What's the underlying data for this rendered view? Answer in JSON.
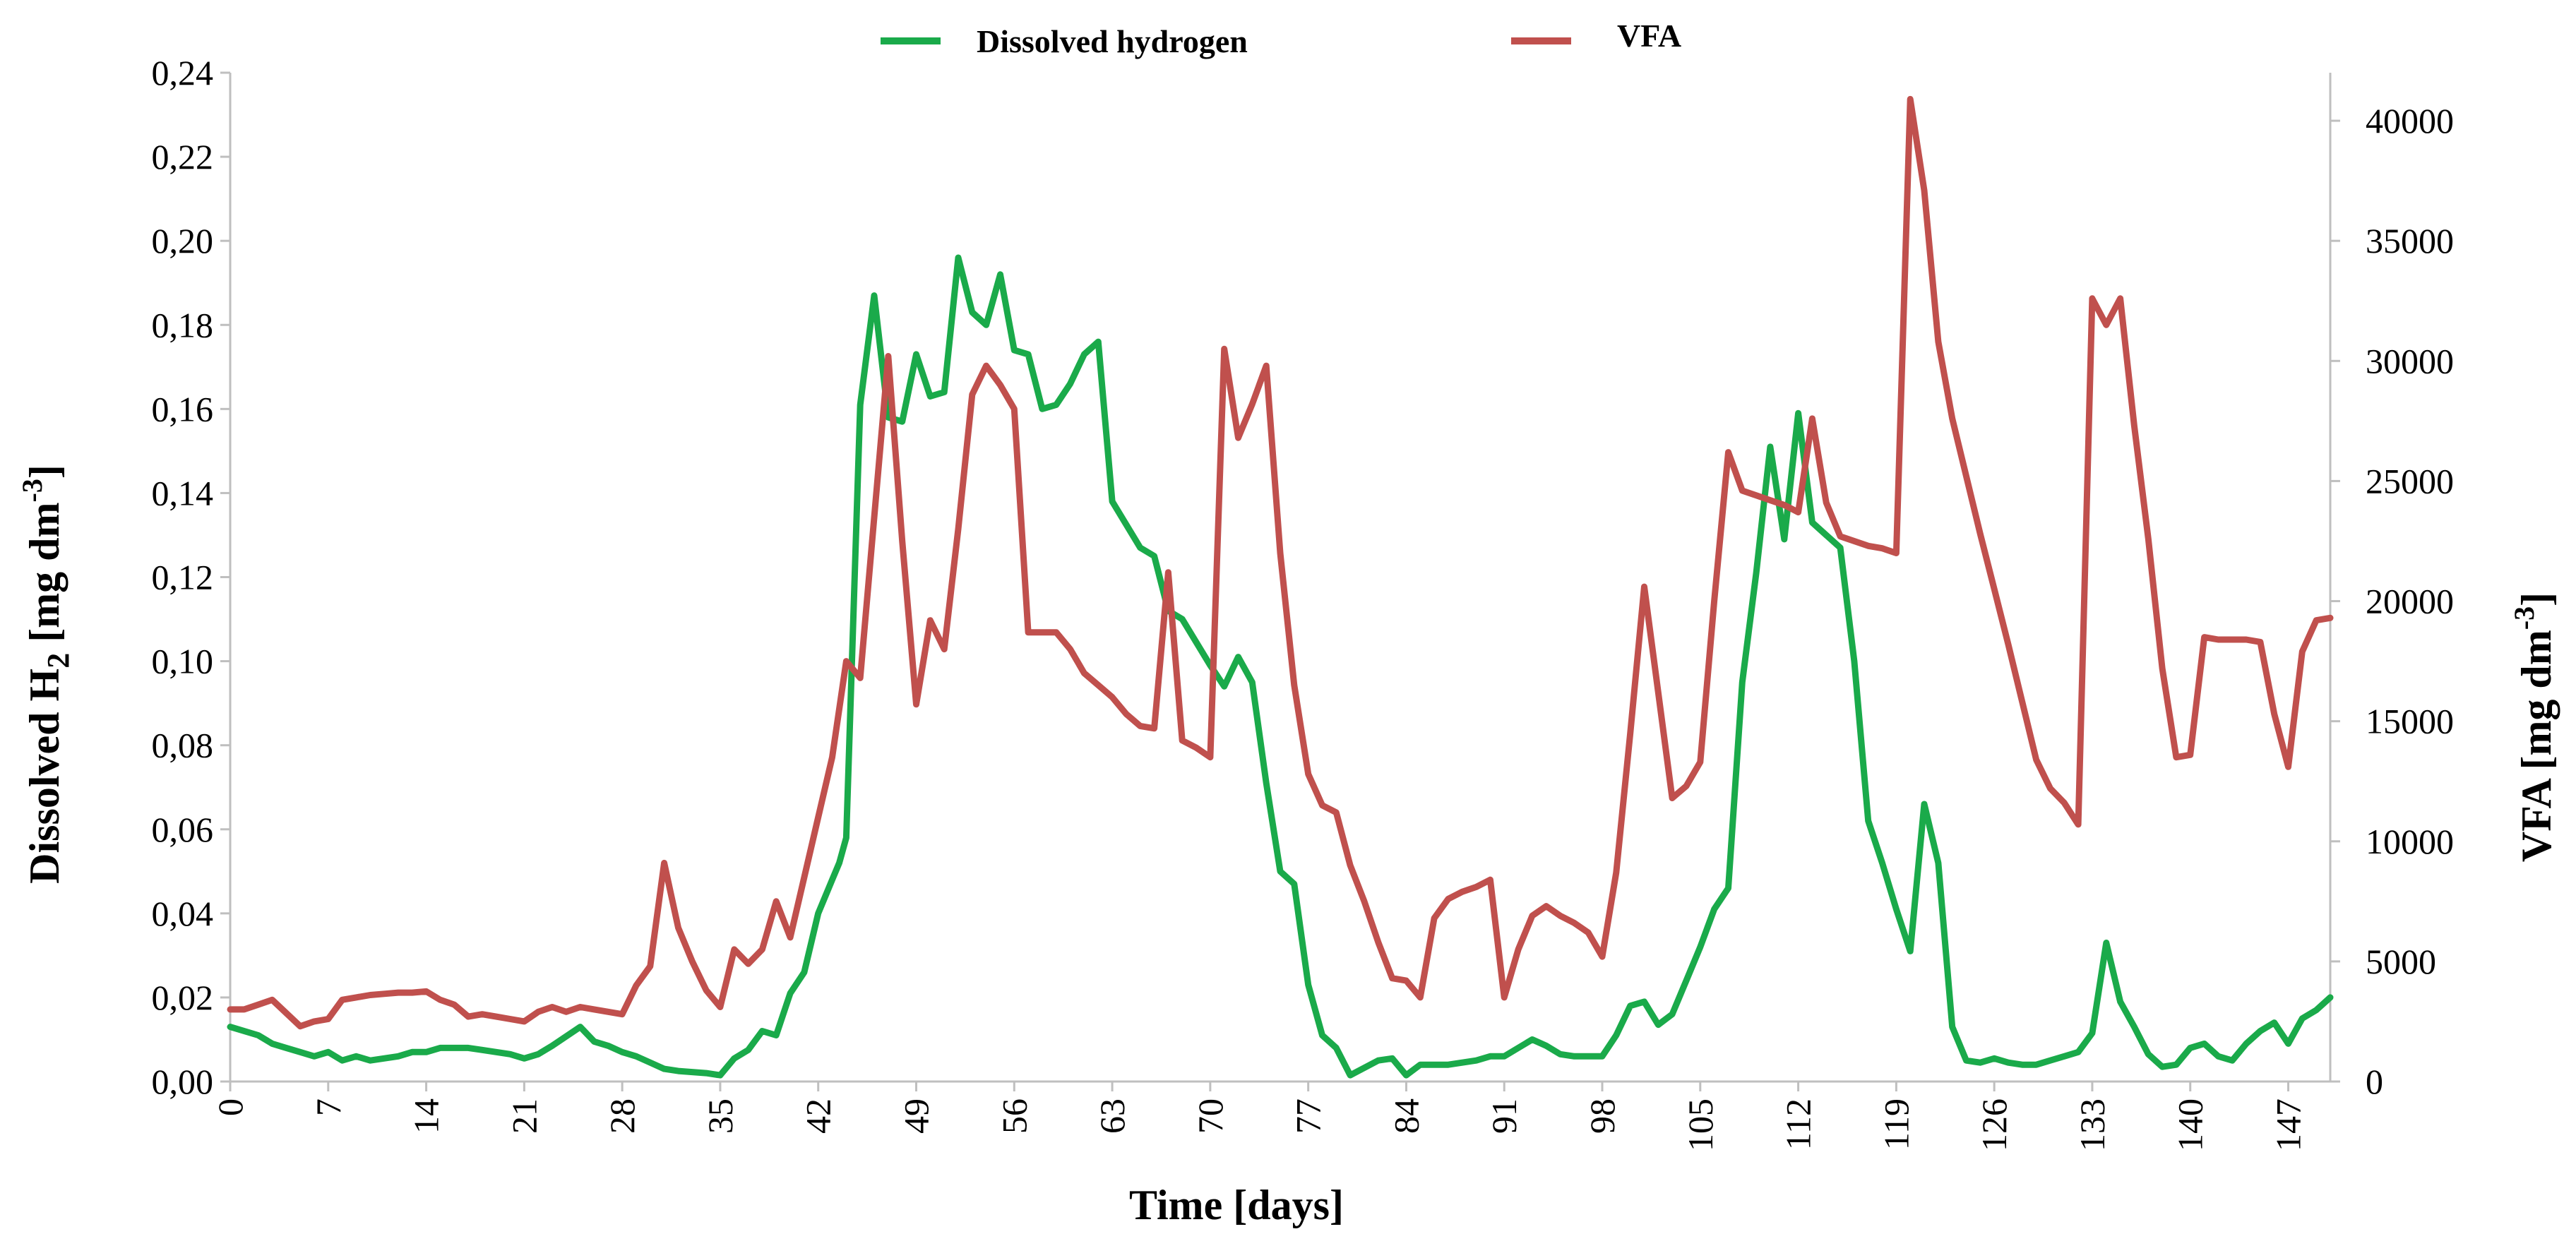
{
  "chart_data": {
    "type": "line",
    "xlabel": "Time [days]",
    "ylabel_left": "Dissolved H",
    "ylabel_left_sub": "2",
    "ylabel_left_unit": " [mg dm",
    "ylabel_left_sup": "-3",
    "ylabel_left_close": "]",
    "ylabel_right": "VFA [mg dm",
    "ylabel_right_sup": "-3",
    "ylabel_right_close": "]",
    "xlim": [
      0,
      150
    ],
    "ylim_left": [
      0,
      0.24
    ],
    "ylim_right": [
      0,
      42000
    ],
    "x_ticks": [
      0,
      7,
      14,
      21,
      28,
      35,
      42,
      49,
      56,
      63,
      70,
      77,
      84,
      91,
      98,
      105,
      112,
      119,
      126,
      133,
      140,
      147
    ],
    "y_left_ticks": [
      "0,00",
      "0,02",
      "0,04",
      "0,06",
      "0,08",
      "0,10",
      "0,12",
      "0,14",
      "0,16",
      "0,18",
      "0,20",
      "0,22",
      "0,24"
    ],
    "y_left_tick_values": [
      0,
      0.02,
      0.04,
      0.06,
      0.08,
      0.1,
      0.12,
      0.14,
      0.16,
      0.18,
      0.2,
      0.22,
      0.24
    ],
    "y_right_ticks": [
      "0",
      "5000",
      "10000",
      "15000",
      "20000",
      "25000",
      "30000",
      "35000",
      "40000"
    ],
    "y_right_tick_values": [
      0,
      5000,
      10000,
      15000,
      20000,
      25000,
      30000,
      35000,
      40000
    ],
    "legend_position": "top",
    "series": [
      {
        "name": "Dissolved hydrogen",
        "axis": "left",
        "color": "#1aaa4a",
        "x": [
          0,
          2,
          3,
          4,
          5,
          6,
          7,
          8,
          9,
          10,
          12,
          13,
          14,
          15,
          17,
          18,
          20,
          21,
          22,
          23,
          25,
          26,
          27,
          28,
          29,
          30,
          31,
          32,
          34,
          35,
          36,
          37,
          38,
          39,
          40,
          41,
          42,
          43,
          43.5,
          44,
          45,
          46,
          47,
          48,
          49,
          50,
          51,
          52,
          53,
          54,
          55,
          56,
          57,
          58,
          59,
          60,
          61,
          62,
          63,
          65,
          66,
          67,
          68,
          70,
          71,
          72,
          73,
          74,
          75,
          76,
          77,
          78,
          79,
          80,
          82,
          83,
          84,
          85,
          86,
          87,
          88,
          89,
          90,
          91,
          93,
          94,
          95,
          96,
          97,
          98,
          99,
          100,
          101,
          102,
          103,
          104,
          105,
          106,
          107,
          108,
          109,
          110,
          111,
          112,
          113,
          114,
          115,
          116,
          117,
          118,
          119,
          120,
          121,
          122,
          123,
          124,
          125,
          126,
          127,
          128,
          129,
          130,
          131,
          132,
          133,
          134,
          135,
          136,
          137,
          138,
          139,
          140,
          141,
          142,
          143,
          144,
          145,
          146,
          147,
          148,
          149,
          150
        ],
        "values": [
          0.013,
          0.011,
          0.009,
          0.008,
          0.007,
          0.006,
          0.007,
          0.005,
          0.006,
          0.005,
          0.006,
          0.007,
          0.007,
          0.008,
          0.008,
          0.0075,
          0.0065,
          0.0055,
          0.0065,
          0.0085,
          0.013,
          0.0095,
          0.0085,
          0.007,
          0.006,
          0.0045,
          0.003,
          0.0025,
          0.002,
          0.0015,
          0.0055,
          0.0075,
          0.012,
          0.011,
          0.021,
          0.026,
          0.04,
          0.048,
          0.052,
          0.058,
          0.161,
          0.187,
          0.158,
          0.157,
          0.173,
          0.163,
          0.164,
          0.196,
          0.183,
          0.18,
          0.192,
          0.174,
          0.173,
          0.16,
          0.161,
          0.166,
          0.173,
          0.176,
          0.138,
          0.127,
          0.125,
          0.112,
          0.11,
          0.099,
          0.094,
          0.101,
          0.095,
          0.071,
          0.05,
          0.047,
          0.023,
          0.011,
          0.008,
          0.0015,
          0.005,
          0.0055,
          0.0015,
          0.004,
          0.004,
          0.004,
          0.0045,
          0.005,
          0.006,
          0.006,
          0.01,
          0.0085,
          0.0065,
          0.006,
          0.006,
          0.006,
          0.011,
          0.018,
          0.019,
          0.0135,
          0.016,
          0.024,
          0.032,
          0.041,
          0.046,
          0.095,
          0.121,
          0.151,
          0.129,
          0.159,
          0.133,
          0.13,
          0.127,
          0.1,
          0.062,
          0.052,
          0.041,
          0.031,
          0.066,
          0.052,
          0.013,
          0.005,
          0.0045,
          0.0055,
          0.0045,
          0.004,
          0.004,
          0.005,
          0.006,
          0.007,
          0.0115,
          0.033,
          0.019,
          0.013,
          0.0065,
          0.0035,
          0.004,
          0.008,
          0.009,
          0.006,
          0.005,
          0.009,
          0.012,
          0.014,
          0.009,
          0.015,
          0.017,
          0.02
        ]
      },
      {
        "name": "VFA",
        "axis": "right",
        "color": "#c0504d",
        "x": [
          0,
          1,
          2,
          3,
          5,
          6,
          7,
          8,
          9,
          10,
          11,
          12,
          13,
          14,
          15,
          16,
          17,
          18,
          19,
          20,
          21,
          22,
          23,
          24,
          25,
          26,
          27,
          28,
          29,
          30,
          31,
          32,
          33,
          34,
          35,
          36,
          37,
          38,
          39,
          40,
          41,
          42,
          43,
          44,
          45,
          47,
          48,
          49,
          50,
          51,
          52,
          53,
          54,
          55,
          56,
          57,
          58,
          59,
          60,
          61,
          62,
          63,
          64,
          65,
          66,
          67,
          68,
          69,
          70,
          71,
          72,
          73,
          74,
          75,
          76,
          77,
          78,
          79,
          80,
          81,
          82,
          83,
          84,
          85,
          86,
          87,
          88,
          89,
          90,
          91,
          92,
          93,
          94,
          95,
          96,
          97,
          98,
          99,
          100,
          101,
          102,
          103,
          104,
          105,
          106,
          107,
          108,
          109,
          110,
          111,
          112,
          113,
          114,
          115,
          116,
          117,
          118,
          119,
          120,
          121,
          122,
          123,
          124,
          125,
          126,
          127,
          128,
          129,
          130,
          131,
          132,
          133,
          134,
          135,
          136,
          137,
          138,
          139,
          140,
          141,
          142,
          143,
          144,
          145,
          146,
          147,
          148,
          149,
          150
        ],
        "values": [
          3000,
          3000,
          3200,
          3400,
          2300,
          2500,
          2600,
          3400,
          3500,
          3600,
          3650,
          3700,
          3700,
          3750,
          3400,
          3200,
          2700,
          2800,
          2700,
          2600,
          2500,
          2900,
          3100,
          2900,
          3100,
          3000,
          2900,
          2800,
          4000,
          4800,
          9100,
          6400,
          5000,
          3800,
          3100,
          5500,
          4900,
          5500,
          7500,
          6000,
          8500,
          11000,
          13500,
          17500,
          16800,
          30200,
          22500,
          15700,
          19200,
          18000,
          23000,
          28600,
          29800,
          29000,
          28000,
          18700,
          18700,
          18700,
          18000,
          17000,
          16500,
          16000,
          15300,
          14800,
          14700,
          21200,
          14200,
          13900,
          13500,
          30500,
          26800,
          28200,
          29800,
          22000,
          16500,
          12800,
          11500,
          11200,
          9000,
          7500,
          5800,
          4300,
          4200,
          3500,
          6800,
          7600,
          7900,
          8100,
          8400,
          3500,
          5500,
          6900,
          7300,
          6900,
          6600,
          6200,
          5200,
          8700,
          14500,
          20600,
          16200,
          11800,
          12300,
          13300,
          20000,
          26200,
          24600,
          24400,
          24200,
          24000,
          23700,
          27600,
          24100,
          22700,
          22500,
          22300,
          22200,
          22000,
          40900,
          37100,
          30800,
          27600,
          25200,
          22800,
          20500,
          18200,
          15800,
          13400,
          12200,
          11600,
          10700,
          32600,
          31500,
          32600,
          27300,
          22600,
          17200,
          13500,
          13600,
          18500,
          18400,
          18400,
          18400,
          18300,
          15300,
          13100,
          17900,
          19200,
          19300
        ]
      }
    ]
  }
}
